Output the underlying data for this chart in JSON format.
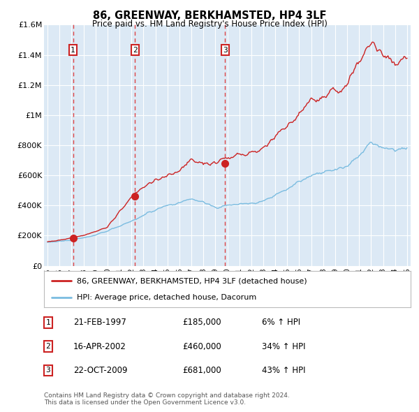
{
  "title": "86, GREENWAY, BERKHAMSTED, HP4 3LF",
  "subtitle": "Price paid vs. HM Land Registry's House Price Index (HPI)",
  "background_color": "#ffffff",
  "plot_bg_color": "#dce9f5",
  "grid_color": "#ffffff",
  "ylim": [
    0,
    1600000
  ],
  "yticks": [
    0,
    200000,
    400000,
    600000,
    800000,
    1000000,
    1200000,
    1400000,
    1600000
  ],
  "ytick_labels": [
    "£0",
    "£200K",
    "£400K",
    "£600K",
    "£800K",
    "£1M",
    "£1.2M",
    "£1.4M",
    "£1.6M"
  ],
  "xlim_start": 1994.7,
  "xlim_end": 2025.3,
  "sale_dates": [
    1997.12,
    2002.29,
    2009.81
  ],
  "sale_prices": [
    185000,
    460000,
    681000
  ],
  "sale_labels": [
    "1",
    "2",
    "3"
  ],
  "sale_label_pcts": [
    "6%",
    "34%",
    "43%"
  ],
  "sale_label_dates_str": [
    "21-FEB-1997",
    "16-APR-2002",
    "22-OCT-2009"
  ],
  "sale_label_prices_str": [
    "£185,000",
    "£460,000",
    "£681,000"
  ],
  "hpi_line_color": "#7abce0",
  "price_line_color": "#cc2222",
  "sale_marker_color": "#cc2222",
  "dashed_line_color": "#dd3333",
  "legend_line1": "86, GREENWAY, BERKHAMSTED, HP4 3LF (detached house)",
  "legend_line2": "HPI: Average price, detached house, Dacorum",
  "footnote1": "Contains HM Land Registry data © Crown copyright and database right 2024.",
  "footnote2": "This data is licensed under the Open Government Licence v3.0."
}
